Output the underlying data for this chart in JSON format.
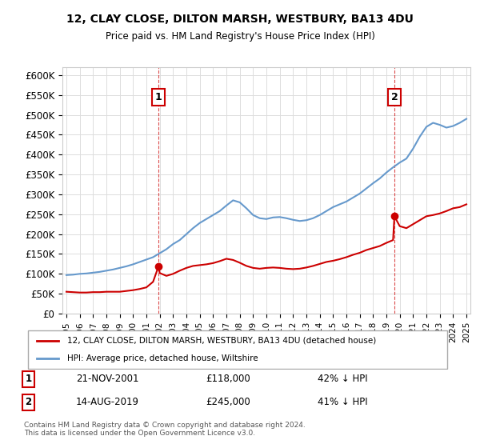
{
  "title1": "12, CLAY CLOSE, DILTON MARSH, WESTBURY, BA13 4DU",
  "title2": "Price paid vs. HM Land Registry's House Price Index (HPI)",
  "ylabel": "",
  "xlim": [
    1995,
    2025.5
  ],
  "ylim": [
    0,
    620000
  ],
  "yticks": [
    0,
    50000,
    100000,
    150000,
    200000,
    250000,
    300000,
    350000,
    400000,
    450000,
    500000,
    550000,
    600000
  ],
  "ytick_labels": [
    "£0",
    "£50K",
    "£100K",
    "£150K",
    "£200K",
    "£250K",
    "£300K",
    "£350K",
    "£400K",
    "£450K",
    "£500K",
    "£550K",
    "£600K"
  ],
  "xtick_years": [
    1995,
    1996,
    1997,
    1998,
    1999,
    2000,
    2001,
    2002,
    2003,
    2004,
    2005,
    2006,
    2007,
    2008,
    2009,
    2010,
    2011,
    2012,
    2013,
    2014,
    2015,
    2016,
    2017,
    2018,
    2019,
    2020,
    2021,
    2022,
    2023,
    2024,
    2025
  ],
  "property_color": "#cc0000",
  "hpi_color": "#6699cc",
  "vline_color": "#cc0000",
  "sale1_year": 2001.9,
  "sale1_price": 118000,
  "sale2_year": 2019.6,
  "sale2_price": 245000,
  "legend_property": "12, CLAY CLOSE, DILTON MARSH, WESTBURY, BA13 4DU (detached house)",
  "legend_hpi": "HPI: Average price, detached house, Wiltshire",
  "annotation1_label": "1",
  "annotation1_date": "21-NOV-2001",
  "annotation1_price": "£118,000",
  "annotation1_hpi": "42% ↓ HPI",
  "annotation2_label": "2",
  "annotation2_date": "14-AUG-2019",
  "annotation2_price": "£245,000",
  "annotation2_hpi": "41% ↓ HPI",
  "footer": "Contains HM Land Registry data © Crown copyright and database right 2024.\nThis data is licensed under the Open Government Licence v3.0.",
  "hpi_x": [
    1995,
    1995.5,
    1996,
    1996.5,
    1997,
    1997.5,
    1998,
    1998.5,
    1999,
    1999.5,
    2000,
    2000.5,
    2001,
    2001.5,
    2002,
    2002.5,
    2003,
    2003.5,
    2004,
    2004.5,
    2005,
    2005.5,
    2006,
    2006.5,
    2007,
    2007.5,
    2008,
    2008.5,
    2009,
    2009.5,
    2010,
    2010.5,
    2011,
    2011.5,
    2012,
    2012.5,
    2013,
    2013.5,
    2014,
    2014.5,
    2015,
    2015.5,
    2016,
    2016.5,
    2017,
    2017.5,
    2018,
    2018.5,
    2019,
    2019.5,
    2020,
    2020.5,
    2021,
    2021.5,
    2022,
    2022.5,
    2023,
    2023.5,
    2024,
    2024.5,
    2025
  ],
  "hpi_y": [
    97000,
    98000,
    100000,
    101000,
    103000,
    105000,
    108000,
    111000,
    115000,
    119000,
    124000,
    130000,
    136000,
    142000,
    152000,
    162000,
    175000,
    185000,
    200000,
    215000,
    228000,
    238000,
    248000,
    258000,
    272000,
    285000,
    280000,
    265000,
    248000,
    240000,
    238000,
    242000,
    243000,
    240000,
    236000,
    233000,
    235000,
    240000,
    248000,
    258000,
    268000,
    275000,
    282000,
    292000,
    302000,
    315000,
    328000,
    340000,
    355000,
    368000,
    380000,
    390000,
    415000,
    445000,
    470000,
    480000,
    475000,
    468000,
    472000,
    480000,
    490000
  ],
  "prop_x": [
    1995,
    1995.5,
    1996,
    1996.5,
    1997,
    1997.5,
    1998,
    1998.5,
    1999,
    1999.5,
    2000,
    2000.5,
    2001,
    2001.5,
    2001.9,
    2002,
    2002.5,
    2003,
    2003.5,
    2004,
    2004.5,
    2005,
    2005.5,
    2006,
    2006.5,
    2007,
    2007.5,
    2008,
    2008.5,
    2009,
    2009.5,
    2010,
    2010.5,
    2011,
    2011.5,
    2012,
    2012.5,
    2013,
    2013.5,
    2014,
    2014.5,
    2015,
    2015.5,
    2016,
    2016.5,
    2017,
    2017.5,
    2018,
    2018.5,
    2019,
    2019.5,
    2019.6,
    2020,
    2020.5,
    2021,
    2021.5,
    2022,
    2022.5,
    2023,
    2023.5,
    2024,
    2024.5,
    2025
  ],
  "prop_y": [
    55000,
    54000,
    53000,
    53000,
    54000,
    54000,
    55000,
    55000,
    55000,
    57000,
    59000,
    62000,
    66000,
    80000,
    118000,
    102000,
    95000,
    100000,
    108000,
    115000,
    120000,
    122000,
    124000,
    127000,
    132000,
    138000,
    135000,
    128000,
    120000,
    115000,
    113000,
    115000,
    116000,
    115000,
    113000,
    112000,
    113000,
    116000,
    120000,
    125000,
    130000,
    133000,
    137000,
    142000,
    148000,
    153000,
    160000,
    165000,
    170000,
    178000,
    185000,
    245000,
    220000,
    215000,
    225000,
    235000,
    245000,
    248000,
    252000,
    258000,
    265000,
    268000,
    275000
  ]
}
